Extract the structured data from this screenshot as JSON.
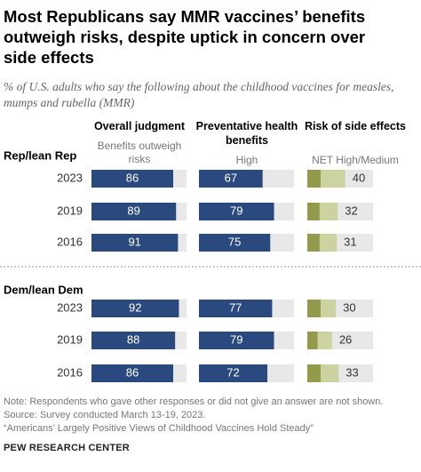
{
  "chart_data": {
    "type": "bar",
    "title": "Most Republicans say MMR vaccines’ benefits outweigh risks, despite uptick in concern over side effects",
    "subtitle": "% of U.S. adults who say the following about the childhood vaccines for measles, mumps and rubella (MMR)",
    "columns": [
      {
        "title": "Overall judgment",
        "sublabel": "Benefits outweigh risks"
      },
      {
        "title": "Preventative health benefits",
        "sublabel": "High"
      },
      {
        "title": "Risk of side effects",
        "sublabel": "NET High/Medium"
      }
    ],
    "xlim": [
      0,
      100
    ],
    "colors": {
      "main": "#2a4a7f",
      "background": "#e8e8e8",
      "high": "#949a4b",
      "medium": "#cdd3a0"
    },
    "groups": [
      {
        "name": "Rep/lean Rep",
        "categories": [
          "2023",
          "2019",
          "2016"
        ],
        "benefits": [
          86,
          89,
          91
        ],
        "preventative": [
          67,
          79,
          75
        ],
        "risk_high": [
          14,
          13,
          13
        ],
        "risk_medium": [
          26,
          19,
          18
        ],
        "risk_net": [
          40,
          32,
          31
        ]
      },
      {
        "name": "Dem/lean Dem",
        "categories": [
          "2023",
          "2019",
          "2016"
        ],
        "benefits": [
          92,
          88,
          86
        ],
        "preventative": [
          77,
          79,
          72
        ],
        "risk_high": [
          14,
          11,
          14
        ],
        "risk_medium": [
          16,
          15,
          19
        ],
        "risk_net": [
          30,
          26,
          33
        ]
      }
    ],
    "notes": [
      "Note: Respondents who gave other responses or did not give an answer are not shown.",
      "Source: Survey conducted March 13-19, 2023.",
      "“Americans’ Largely Positive Views of Childhood Vaccines Hold Steady”"
    ],
    "source": "PEW RESEARCH CENTER"
  }
}
